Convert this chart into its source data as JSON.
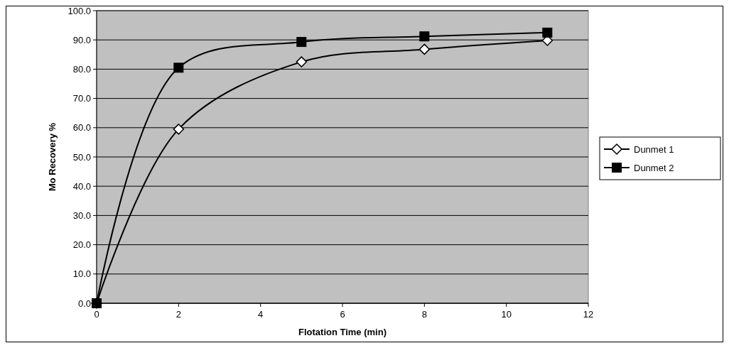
{
  "chart_data": {
    "type": "line",
    "xlabel": "Flotation Time (min)",
    "ylabel": "Mo Recovery %",
    "x": [
      0,
      2,
      5,
      8,
      11
    ],
    "series": [
      {
        "name": "Dunmet 1",
        "color": "#000000",
        "marker": "diamond",
        "values": [
          0,
          59.5,
          82.5,
          86.8,
          89.8
        ]
      },
      {
        "name": "Dunmet 2",
        "color": "#000000",
        "marker": "square",
        "values": [
          0,
          80.5,
          89.3,
          91.2,
          92.5
        ]
      }
    ],
    "xlim": [
      0,
      12
    ],
    "xticks": [
      0,
      2,
      4,
      6,
      8,
      10,
      12
    ],
    "ylim": [
      0,
      100
    ],
    "yticks": [
      {
        "value": 0,
        "label": "0.0"
      },
      {
        "value": 10,
        "label": "10.0"
      },
      {
        "value": 20,
        "label": "20.0"
      },
      {
        "value": 30,
        "label": "30.0"
      },
      {
        "value": 40,
        "label": "40.0"
      },
      {
        "value": 50,
        "label": "50.0"
      },
      {
        "value": 60,
        "label": "60.0"
      },
      {
        "value": 70,
        "label": "70.0"
      },
      {
        "value": 80,
        "label": "80.0"
      },
      {
        "value": 90,
        "label": "90.0"
      },
      {
        "value": 100,
        "label": "100.0"
      }
    ],
    "grid": "y",
    "legend": "right",
    "line_style": "solid"
  }
}
